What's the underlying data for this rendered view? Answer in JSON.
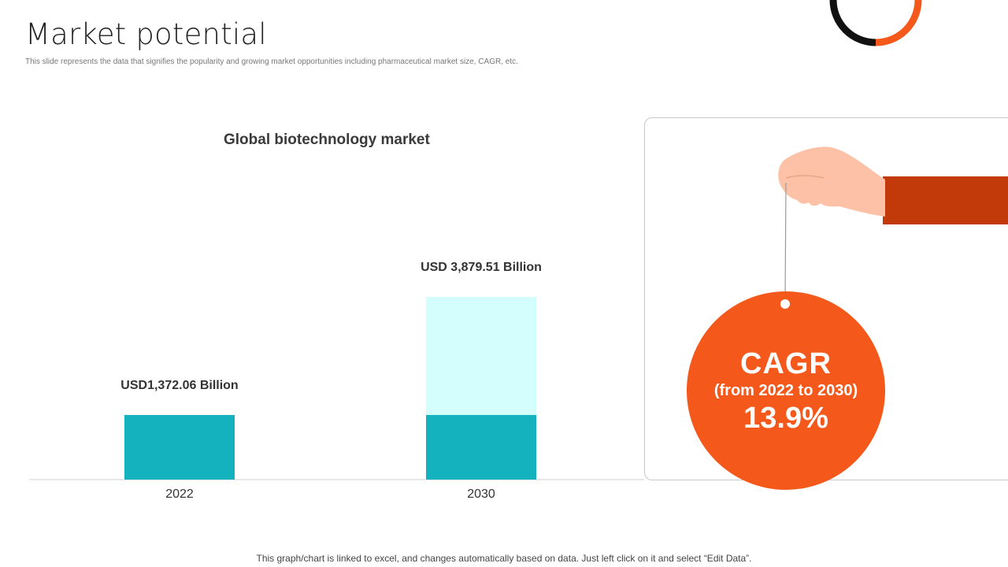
{
  "slide": {
    "title": "Market potential",
    "subtitle": "This slide represents the data that signifies the popularity and growing market opportunities including pharmaceutical market size, CAGR, etc.",
    "footnote": "This graph/chart is linked to excel, and changes automatically based on data. Just left click on it and select “Edit Data”."
  },
  "cagr": {
    "title": "CAGR",
    "range": "(from 2022 to 2030)",
    "value": "13.9%"
  },
  "colors": {
    "teal": "#14b1be",
    "light_cyan": "#d4fdfd",
    "orange": "#f4581b",
    "dark_orange": "#c23a0a",
    "skin": "#fcc1a6",
    "ring_black": "#111111"
  },
  "chart_data": {
    "type": "bar",
    "title": "Global biotechnology market",
    "categories": [
      "2022",
      "2030"
    ],
    "values": [
      1372.06,
      3879.51
    ],
    "base_values": [
      1372.06,
      1372.06
    ],
    "unit": "USD Billion",
    "data_labels": [
      "USD1,372.06 Billion",
      "USD 3,879.51 Billion"
    ],
    "ylim": [
      0,
      3879.51
    ],
    "grid": false,
    "legend": "none"
  }
}
